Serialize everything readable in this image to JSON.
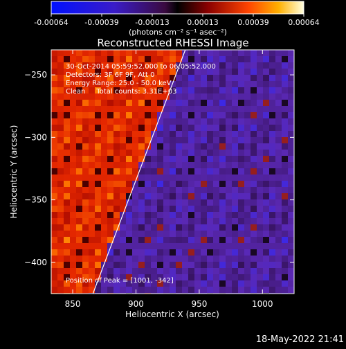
{
  "chart_data": {
    "type": "heatmap",
    "title": "Reconstructed RHESSI Image",
    "xlabel": "Heliocentric X (arcsec)",
    "ylabel": "Heliocentric Y (arcsec)",
    "xlim": [
      833,
      1025
    ],
    "ylim": [
      -425,
      -230
    ],
    "x_ticks": [
      "850",
      "900",
      "950",
      "1000"
    ],
    "y_ticks": [
      "-250",
      "-300",
      "-350",
      "-400"
    ],
    "colorbar": {
      "range": [
        -0.00064,
        0.00064
      ],
      "tick_labels": [
        "-0.00064",
        "-0.00039",
        "-0.00013",
        "0.00013",
        "0.00039",
        "0.00064"
      ],
      "units": "(photons cm⁻² s⁻¹ asec⁻²)"
    },
    "limb_line": {
      "points": [
        [
          866,
          -425
        ],
        [
          939,
          -230
        ]
      ]
    },
    "annotations": [
      "30-Oct-2014 05:59:52.000 to 06:05:52.000",
      "Detectors: 3F 6F 9F, Att 0",
      "Energy Range: 25.0 - 50.0 keV",
      "Clean     Total counts: 3.31E+03",
      "Position of Peak = [1001, -342]"
    ],
    "peak": [
      1001,
      -342
    ]
  },
  "footer": {
    "date": "18-May-2022 21:41"
  }
}
